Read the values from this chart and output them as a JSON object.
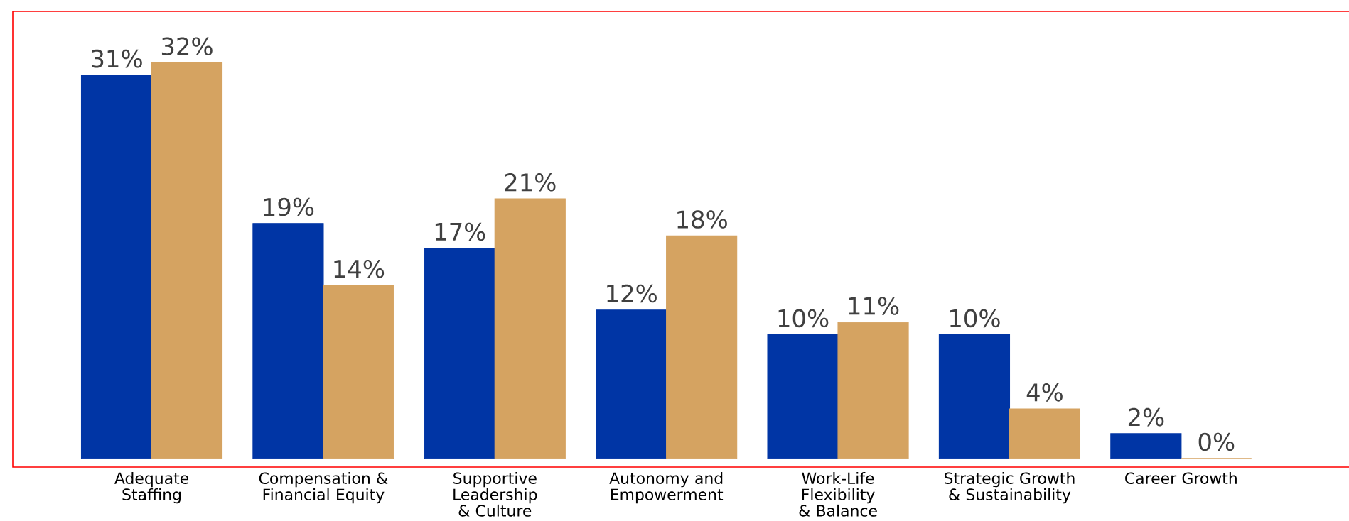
{
  "chart_data": {
    "type": "bar",
    "categories": [
      "Adequate Staffing",
      "Compensation & Financial Equity",
      "Supportive Leadership & Culture",
      "Autonomy and Empowerment",
      "Work-Life Flexibility & Balance",
      "Strategic Growth & Sustainability",
      "Career Growth"
    ],
    "series": [
      {
        "color": "#0035a5",
        "values": [
          31,
          19,
          17,
          12,
          10,
          10,
          2
        ],
        "value_labels": [
          "31%",
          "19%",
          "17%",
          "12%",
          "10%",
          "10%",
          "2%"
        ]
      },
      {
        "color": "#d5a361",
        "values": [
          32,
          14,
          21,
          18,
          11,
          4,
          0
        ],
        "value_labels": [
          "32%",
          "14%",
          "21%",
          "18%",
          "11%",
          "4%",
          "0%"
        ]
      }
    ]
  }
}
